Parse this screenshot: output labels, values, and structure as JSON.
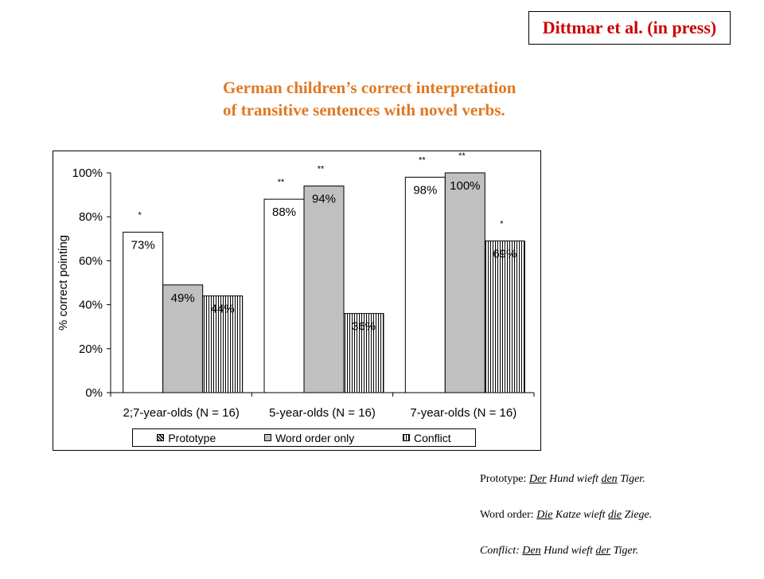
{
  "citation": "Dittmar et al. (in press)",
  "title_lines": [
    "German children’s correct interpretation",
    "of transitive sentences with novel verbs."
  ],
  "chart_data": {
    "type": "bar",
    "title": "",
    "ylabel": "% correct pointing",
    "xlabel": "",
    "ylim": [
      0,
      100
    ],
    "yticks": [
      "0%",
      "20%",
      "40%",
      "60%",
      "80%",
      "100%"
    ],
    "categories": [
      "2;7-year-olds (N = 16)",
      "5-year-olds (N = 16)",
      "7-year-olds (N = 16)"
    ],
    "series": [
      {
        "name": "Prototype",
        "values": [
          73,
          88,
          98
        ],
        "labels": [
          "73%",
          "88%",
          "98%"
        ],
        "significance": [
          "*",
          "**",
          "**"
        ],
        "fill": "#ffffff"
      },
      {
        "name": "Word order only",
        "values": [
          49,
          94,
          100
        ],
        "labels": [
          "49%",
          "94%",
          "100%"
        ],
        "significance": [
          "",
          "**",
          "**"
        ],
        "fill": "#c0c0c0"
      },
      {
        "name": "Conflict",
        "values": [
          44,
          36,
          69
        ],
        "labels": [
          "44%",
          "36%",
          "69%"
        ],
        "significance": [
          "",
          "",
          "*"
        ],
        "fill": "vertical-lines"
      }
    ],
    "legend_position": "bottom",
    "grid": false
  },
  "examples": [
    {
      "label": "Prototype: ",
      "italic": false,
      "parts": [
        {
          "text": "Der",
          "underline": true
        },
        {
          "text": " Hund wieft ",
          "underline": false
        },
        {
          "text": "den",
          "underline": true
        },
        {
          "text": " Tiger.",
          "underline": false
        }
      ]
    },
    {
      "label": "Word order: ",
      "italic": false,
      "parts": [
        {
          "text": "Die",
          "underline": true
        },
        {
          "text": " Katze wieft ",
          "underline": false
        },
        {
          "text": "die",
          "underline": true
        },
        {
          "text": " Ziege.",
          "underline": false
        }
      ]
    },
    {
      "label": "Conflict: ",
      "italic": true,
      "parts": [
        {
          "text": "Den",
          "underline": true
        },
        {
          "text": " Hund wieft ",
          "underline": false
        },
        {
          "text": "der",
          "underline": true
        },
        {
          "text": " Tiger.",
          "underline": false
        }
      ]
    }
  ],
  "colors": {
    "citation": "#cc0000",
    "title": "#e07820",
    "word_order_fill": "#c0c0c0"
  }
}
